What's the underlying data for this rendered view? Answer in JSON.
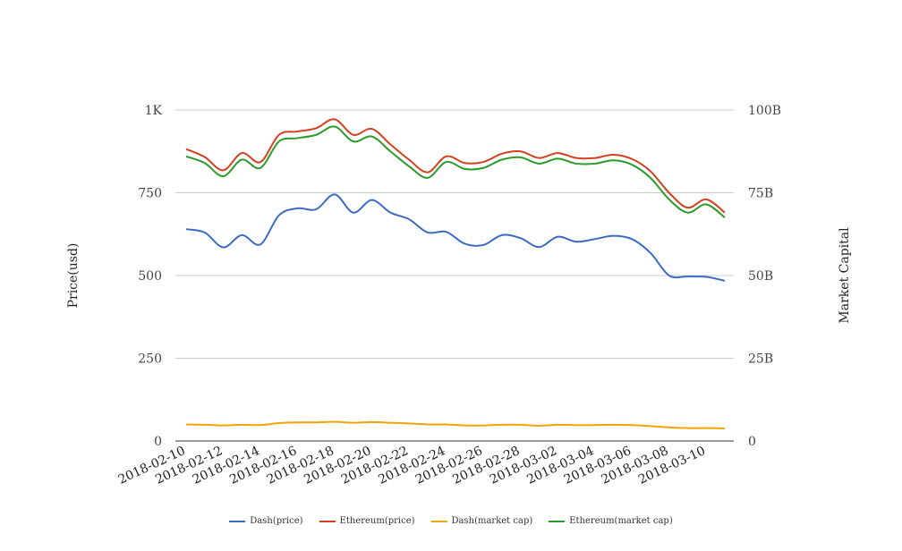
{
  "chart_data": {
    "type": "line",
    "x": [
      "2018-02-10",
      "2018-02-11",
      "2018-02-12",
      "2018-02-13",
      "2018-02-14",
      "2018-02-15",
      "2018-02-16",
      "2018-02-17",
      "2018-02-18",
      "2018-02-19",
      "2018-02-20",
      "2018-02-21",
      "2018-02-22",
      "2018-02-23",
      "2018-02-24",
      "2018-02-25",
      "2018-02-26",
      "2018-02-27",
      "2018-02-28",
      "2018-03-01",
      "2018-03-02",
      "2018-03-03",
      "2018-03-04",
      "2018-03-05",
      "2018-03-06",
      "2018-03-07",
      "2018-03-08",
      "2018-03-09",
      "2018-03-10",
      "2018-03-11"
    ],
    "x_tick_labels": [
      "2018-02-10",
      "2018-02-12",
      "2018-02-14",
      "2018-02-16",
      "2018-02-18",
      "2018-02-20",
      "2018-02-22",
      "2018-02-24",
      "2018-02-26",
      "2018-02-28",
      "2018-03-02",
      "2018-03-04",
      "2018-03-06",
      "2018-03-08",
      "2018-03-10"
    ],
    "ylabel": "Price(usd)",
    "y2label": "Market Capital",
    "ylim": [
      0,
      1000
    ],
    "y2lim": [
      0,
      100000000000
    ],
    "y_ticks": [
      0,
      250,
      500,
      750,
      1000
    ],
    "y_tick_labels": [
      "0",
      "250",
      "500",
      "750",
      "1K"
    ],
    "y2_tick_labels": [
      "0",
      "25B",
      "50B",
      "75B",
      "100B"
    ],
    "grid": true,
    "legend_position": "bottom",
    "series": [
      {
        "name": "Dash(price)",
        "color": "#3a6cc4",
        "axis": "left",
        "values": [
          640,
          630,
          585,
          622,
          594,
          682,
          703,
          700,
          745,
          690,
          728,
          690,
          670,
          630,
          632,
          596,
          592,
          622,
          613,
          586,
          617,
          602,
          610,
          620,
          610,
          568,
          500,
          497,
          496,
          484
        ]
      },
      {
        "name": "Ethereum(price)",
        "color": "#d3401e",
        "axis": "left",
        "values": [
          882,
          858,
          818,
          870,
          843,
          925,
          935,
          945,
          972,
          925,
          943,
          896,
          850,
          812,
          860,
          840,
          843,
          868,
          875,
          855,
          870,
          855,
          855,
          865,
          852,
          815,
          750,
          705,
          730,
          690
        ]
      },
      {
        "name": "Dash(market cap)",
        "color": "#f0a30a",
        "axis": "right",
        "values": [
          5000000000,
          4900000000,
          4700000000,
          4900000000,
          4800000000,
          5400000000,
          5600000000,
          5600000000,
          5800000000,
          5500000000,
          5700000000,
          5500000000,
          5300000000,
          5000000000,
          5000000000,
          4700000000,
          4700000000,
          4900000000,
          4900000000,
          4600000000,
          4900000000,
          4800000000,
          4800000000,
          4900000000,
          4800000000,
          4500000000,
          4100000000,
          3900000000,
          3900000000,
          3800000000
        ]
      },
      {
        "name": "Ethereum(market cap)",
        "color": "#2a9a2a",
        "axis": "right",
        "values": [
          86000000000,
          84000000000,
          80000000000,
          85000000000,
          82500000000,
          90500000000,
          91500000000,
          92500000000,
          95000000000,
          90500000000,
          92000000000,
          87500000000,
          83000000000,
          79500000000,
          84300000000,
          82200000000,
          82500000000,
          85000000000,
          85700000000,
          83800000000,
          85300000000,
          83800000000,
          83800000000,
          84800000000,
          83500000000,
          79500000000,
          73000000000,
          69000000000,
          71500000000,
          67500000000
        ]
      }
    ]
  }
}
